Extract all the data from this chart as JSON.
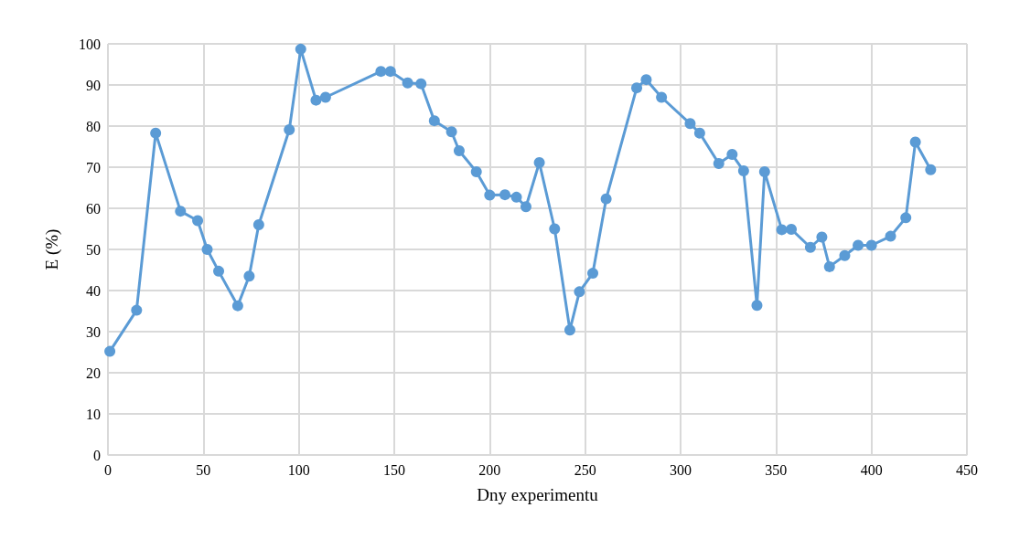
{
  "chart_data": {
    "type": "line",
    "xlabel": "Dny experimentu",
    "ylabel": "E (%)",
    "x": [
      1,
      15,
      25,
      38,
      47,
      52,
      58,
      68,
      74,
      79,
      95,
      101,
      109,
      114,
      143,
      148,
      157,
      164,
      171,
      180,
      184,
      193,
      200,
      208,
      214,
      219,
      226,
      234,
      242,
      247,
      254,
      261,
      277,
      282,
      290,
      305,
      310,
      320,
      327,
      333,
      340,
      344,
      353,
      358,
      368,
      374,
      378,
      386,
      393,
      400,
      410,
      418,
      423,
      431
    ],
    "values": [
      25.2,
      35.2,
      78.3,
      59.3,
      57,
      50,
      44.7,
      36.3,
      43.5,
      56,
      79.1,
      98.7,
      86.3,
      87,
      93.3,
      93.3,
      90.5,
      90.3,
      81.3,
      78.6,
      74,
      68.9,
      63.2,
      63.3,
      62.7,
      60.4,
      71.1,
      55,
      30.4,
      39.7,
      44.2,
      62.3,
      89.3,
      91.3,
      87,
      80.6,
      78.3,
      70.9,
      73.1,
      69.1,
      36.4,
      68.9,
      54.8,
      54.9,
      50.5,
      53,
      45.8,
      48.5,
      51,
      51,
      53.2,
      57.7,
      76.1,
      69.4
    ],
    "color": "#5b9bd5",
    "marker": "circle",
    "line_style": "solid",
    "xlim": [
      0,
      450
    ],
    "xticks": [
      0,
      50,
      100,
      150,
      200,
      250,
      300,
      350,
      400,
      450
    ],
    "ylim": [
      0,
      100
    ],
    "yticks": [
      0,
      10,
      20,
      30,
      40,
      50,
      60,
      70,
      80,
      90,
      100
    ],
    "grid": true
  }
}
